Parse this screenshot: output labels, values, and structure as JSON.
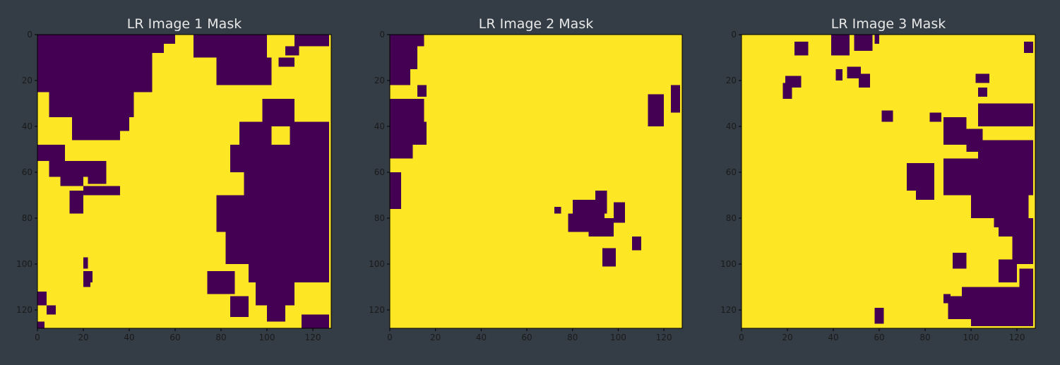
{
  "chart_data": [
    {
      "type": "heatmap",
      "title": "LR Image 1 Mask",
      "xlim": [
        0,
        128
      ],
      "ylim": [
        128,
        0
      ],
      "xticks": [
        0,
        20,
        40,
        60,
        80,
        100,
        120
      ],
      "yticks": [
        0,
        20,
        40,
        60,
        80,
        100,
        120
      ],
      "background_value": 1,
      "masked_value": 0,
      "masked_regions": [
        [
          0,
          8,
          0,
          55
        ],
        [
          8,
          25,
          0,
          50
        ],
        [
          25,
          36,
          5,
          42
        ],
        [
          36,
          42,
          15,
          40
        ],
        [
          42,
          46,
          15,
          36
        ],
        [
          48,
          55,
          0,
          12
        ],
        [
          55,
          62,
          5,
          30
        ],
        [
          62,
          66,
          10,
          20
        ],
        [
          66,
          70,
          20,
          36
        ],
        [
          55,
          65,
          22,
          30
        ],
        [
          20,
          30,
          20,
          27
        ],
        [
          68,
          76,
          14,
          20
        ],
        [
          0,
          4,
          50,
          60
        ],
        [
          0,
          10,
          68,
          100
        ],
        [
          10,
          22,
          78,
          102
        ],
        [
          10,
          14,
          105,
          112
        ],
        [
          5,
          9,
          108,
          114
        ],
        [
          0,
          5,
          112,
          127
        ],
        [
          28,
          40,
          98,
          112
        ],
        [
          38,
          48,
          88,
          102
        ],
        [
          48,
          60,
          84,
          98
        ],
        [
          38,
          58,
          110,
          127
        ],
        [
          48,
          70,
          90,
          127
        ],
        [
          70,
          86,
          78,
          127
        ],
        [
          86,
          100,
          82,
          127
        ],
        [
          100,
          108,
          92,
          127
        ],
        [
          103,
          113,
          74,
          86
        ],
        [
          108,
          118,
          95,
          112
        ],
        [
          114,
          123,
          84,
          92
        ],
        [
          117,
          125,
          100,
          108
        ],
        [
          122,
          128,
          115,
          127
        ],
        [
          72,
          78,
          14,
          20
        ],
        [
          103,
          108,
          20,
          24
        ],
        [
          112,
          118,
          0,
          4
        ],
        [
          118,
          122,
          4,
          8
        ],
        [
          106,
          110,
          20,
          23
        ],
        [
          97,
          102,
          20,
          22
        ],
        [
          125,
          128,
          0,
          3
        ]
      ]
    },
    {
      "type": "heatmap",
      "title": "LR Image 2 Mask",
      "xlim": [
        0,
        128
      ],
      "ylim": [
        128,
        0
      ],
      "xticks": [
        0,
        20,
        40,
        60,
        80,
        100,
        120
      ],
      "yticks": [
        0,
        20,
        40,
        60,
        80,
        100,
        120
      ],
      "background_value": 1,
      "masked_value": 0,
      "masked_regions": [
        [
          0,
          5,
          0,
          15
        ],
        [
          5,
          15,
          0,
          12
        ],
        [
          15,
          22,
          0,
          9
        ],
        [
          22,
          27,
          12,
          16
        ],
        [
          28,
          38,
          0,
          15
        ],
        [
          38,
          48,
          0,
          16
        ],
        [
          48,
          54,
          0,
          10
        ],
        [
          60,
          76,
          0,
          5
        ],
        [
          26,
          40,
          113,
          120
        ],
        [
          22,
          34,
          123,
          127
        ],
        [
          68,
          78,
          90,
          95
        ],
        [
          72,
          80,
          80,
          90
        ],
        [
          78,
          86,
          78,
          87
        ],
        [
          80,
          88,
          87,
          98
        ],
        [
          73,
          82,
          98,
          103
        ],
        [
          76,
          82,
          90,
          94
        ],
        [
          88,
          94,
          106,
          110
        ],
        [
          93,
          101,
          93,
          99
        ],
        [
          75,
          78,
          72,
          75
        ]
      ]
    },
    {
      "type": "heatmap",
      "title": "LR Image 3 Mask",
      "xlim": [
        0,
        128
      ],
      "ylim": [
        128,
        0
      ],
      "xticks": [
        0,
        20,
        40,
        60,
        80,
        100,
        120
      ],
      "yticks": [
        0,
        20,
        40,
        60,
        80,
        100,
        120
      ],
      "background_value": 1,
      "masked_value": 0,
      "masked_regions": [
        [
          3,
          9,
          23,
          29
        ],
        [
          0,
          9,
          39,
          47
        ],
        [
          0,
          7,
          49,
          57
        ],
        [
          0,
          4,
          58,
          60
        ],
        [
          3,
          8,
          123,
          127
        ],
        [
          14,
          19,
          46,
          52
        ],
        [
          15,
          20,
          41,
          44
        ],
        [
          17,
          23,
          51,
          56
        ],
        [
          18,
          23,
          19,
          26
        ],
        [
          21,
          28,
          18,
          22
        ],
        [
          17,
          21,
          102,
          108
        ],
        [
          23,
          27,
          103,
          107
        ],
        [
          30,
          40,
          103,
          127
        ],
        [
          32,
          38,
          123,
          127
        ],
        [
          33,
          38,
          61,
          66
        ],
        [
          34,
          38,
          82,
          87
        ],
        [
          36,
          48,
          88,
          98
        ],
        [
          41,
          51,
          98,
          105
        ],
        [
          46,
          62,
          103,
          127
        ],
        [
          54,
          70,
          88,
          127
        ],
        [
          56,
          68,
          72,
          84
        ],
        [
          64,
          72,
          76,
          84
        ],
        [
          62,
          80,
          100,
          125
        ],
        [
          68,
          84,
          110,
          125
        ],
        [
          80,
          88,
          112,
          127
        ],
        [
          88,
          100,
          118,
          127
        ],
        [
          98,
          108,
          112,
          120
        ],
        [
          95,
          102,
          92,
          98
        ],
        [
          102,
          110,
          121,
          127
        ],
        [
          110,
          116,
          96,
          109
        ],
        [
          110,
          127,
          100,
          127
        ],
        [
          114,
          124,
          90,
          102
        ],
        [
          118,
          127,
          107,
          120
        ],
        [
          119,
          126,
          58,
          62
        ],
        [
          113,
          117,
          88,
          91
        ],
        [
          122,
          127,
          103,
          108
        ]
      ]
    }
  ],
  "colors": {
    "masked": "#440154",
    "unmasked": "#fde725",
    "title": "#e8e8e8",
    "tick_label": "#1a1a1a",
    "spine": "#000000"
  }
}
